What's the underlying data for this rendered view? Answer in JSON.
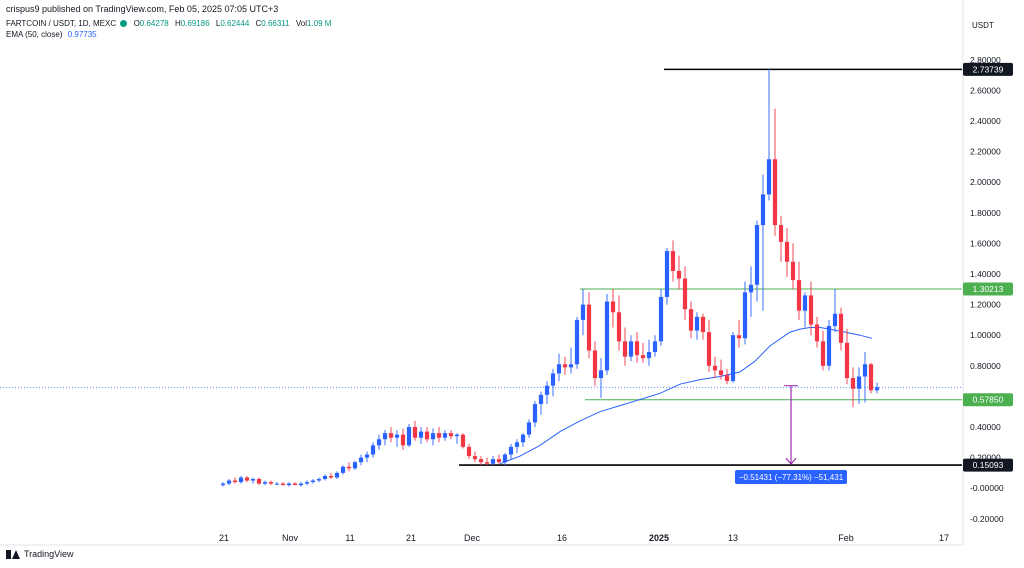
{
  "header": {
    "publisher": "crispus9 published on TradingView.com, Feb 05, 2025 07:05 UTC+3",
    "symbol": "FARTCOIN / USDT, 1D, MEXC",
    "ohlc": {
      "o_label": "O",
      "o": "0.64278",
      "h_label": "H",
      "h": "0.69186",
      "l_label": "L",
      "l": "0.62444",
      "c_label": "C",
      "c": "0.66311",
      "vol_label": "Vol",
      "vol": "1.09 M"
    },
    "ema_label": "EMA (50, close)",
    "ema_value": "0.97735",
    "currency": "USDT"
  },
  "footer": {
    "brand": "TradingView"
  },
  "colors": {
    "up": "#2962ff",
    "down": "#f23645",
    "ema": "#2962ff",
    "support_line": "#4caf50",
    "level_line": "#000000",
    "measure": "#9c27b0",
    "measure_label_bg": "#2962ff",
    "green_label_bg": "#4caf50",
    "black_label_bg": "#131722"
  },
  "chart_data": {
    "type": "candlestick",
    "symbol": "FARTCOIN / USDT",
    "interval": "1D",
    "ylim": [
      -0.25,
      2.85
    ],
    "y_ticks": [
      "2.80000",
      "2.60000",
      "2.40000",
      "2.20000",
      "2.00000",
      "1.80000",
      "1.60000",
      "1.40000",
      "1.20000",
      "1.00000",
      "0.80000",
      "0.60000",
      "0.40000",
      "0.20000",
      "-0.00000",
      "-0.20000"
    ],
    "x_ticks": [
      "21",
      "Nov",
      "11",
      "21",
      "Dec",
      "16",
      "2025",
      "13",
      "Feb",
      "17"
    ],
    "horizontal_levels": [
      {
        "value": 2.73739,
        "label": "2.73739",
        "style": "black"
      },
      {
        "value": 1.30213,
        "label": "1.30213",
        "style": "green"
      },
      {
        "value": 0.5785,
        "label": "0.57850",
        "style": "green"
      },
      {
        "value": 0.15093,
        "label": "0.15093",
        "style": "black"
      }
    ],
    "measure": {
      "from": 0.67,
      "to": 0.15093,
      "label": "−0.51431 (−77.31%) −51,431"
    },
    "candles": [
      {
        "x": 223,
        "o": 0.02,
        "h": 0.04,
        "l": 0.01,
        "c": 0.03
      },
      {
        "x": 229,
        "o": 0.03,
        "h": 0.06,
        "l": 0.02,
        "c": 0.05
      },
      {
        "x": 235,
        "o": 0.05,
        "h": 0.07,
        "l": 0.03,
        "c": 0.04
      },
      {
        "x": 241,
        "o": 0.04,
        "h": 0.08,
        "l": 0.03,
        "c": 0.07
      },
      {
        "x": 247,
        "o": 0.07,
        "h": 0.08,
        "l": 0.04,
        "c": 0.05
      },
      {
        "x": 253,
        "o": 0.05,
        "h": 0.07,
        "l": 0.03,
        "c": 0.06
      },
      {
        "x": 259,
        "o": 0.06,
        "h": 0.07,
        "l": 0.02,
        "c": 0.03
      },
      {
        "x": 265,
        "o": 0.03,
        "h": 0.05,
        "l": 0.02,
        "c": 0.04
      },
      {
        "x": 271,
        "o": 0.04,
        "h": 0.05,
        "l": 0.02,
        "c": 0.03
      },
      {
        "x": 277,
        "o": 0.03,
        "h": 0.04,
        "l": 0.02,
        "c": 0.03
      },
      {
        "x": 283,
        "o": 0.03,
        "h": 0.04,
        "l": 0.02,
        "c": 0.02
      },
      {
        "x": 289,
        "o": 0.02,
        "h": 0.04,
        "l": 0.01,
        "c": 0.03
      },
      {
        "x": 295,
        "o": 0.03,
        "h": 0.04,
        "l": 0.02,
        "c": 0.02
      },
      {
        "x": 301,
        "o": 0.02,
        "h": 0.04,
        "l": 0.01,
        "c": 0.03
      },
      {
        "x": 307,
        "o": 0.03,
        "h": 0.05,
        "l": 0.02,
        "c": 0.04
      },
      {
        "x": 313,
        "o": 0.04,
        "h": 0.06,
        "l": 0.03,
        "c": 0.05
      },
      {
        "x": 319,
        "o": 0.05,
        "h": 0.07,
        "l": 0.04,
        "c": 0.06
      },
      {
        "x": 325,
        "o": 0.06,
        "h": 0.09,
        "l": 0.05,
        "c": 0.08
      },
      {
        "x": 331,
        "o": 0.08,
        "h": 0.1,
        "l": 0.06,
        "c": 0.07
      },
      {
        "x": 337,
        "o": 0.07,
        "h": 0.11,
        "l": 0.06,
        "c": 0.1
      },
      {
        "x": 343,
        "o": 0.1,
        "h": 0.15,
        "l": 0.09,
        "c": 0.14
      },
      {
        "x": 349,
        "o": 0.14,
        "h": 0.17,
        "l": 0.11,
        "c": 0.13
      },
      {
        "x": 355,
        "o": 0.13,
        "h": 0.18,
        "l": 0.12,
        "c": 0.17
      },
      {
        "x": 361,
        "o": 0.17,
        "h": 0.22,
        "l": 0.15,
        "c": 0.2
      },
      {
        "x": 367,
        "o": 0.2,
        "h": 0.24,
        "l": 0.17,
        "c": 0.22
      },
      {
        "x": 373,
        "o": 0.22,
        "h": 0.3,
        "l": 0.2,
        "c": 0.28
      },
      {
        "x": 379,
        "o": 0.28,
        "h": 0.35,
        "l": 0.25,
        "c": 0.32
      },
      {
        "x": 385,
        "o": 0.32,
        "h": 0.38,
        "l": 0.28,
        "c": 0.36
      },
      {
        "x": 391,
        "o": 0.36,
        "h": 0.4,
        "l": 0.3,
        "c": 0.33
      },
      {
        "x": 397,
        "o": 0.33,
        "h": 0.38,
        "l": 0.27,
        "c": 0.35
      },
      {
        "x": 403,
        "o": 0.35,
        "h": 0.39,
        "l": 0.25,
        "c": 0.28
      },
      {
        "x": 409,
        "o": 0.28,
        "h": 0.42,
        "l": 0.27,
        "c": 0.4
      },
      {
        "x": 415,
        "o": 0.4,
        "h": 0.44,
        "l": 0.31,
        "c": 0.33
      },
      {
        "x": 421,
        "o": 0.33,
        "h": 0.4,
        "l": 0.29,
        "c": 0.37
      },
      {
        "x": 427,
        "o": 0.37,
        "h": 0.4,
        "l": 0.3,
        "c": 0.32
      },
      {
        "x": 433,
        "o": 0.32,
        "h": 0.39,
        "l": 0.28,
        "c": 0.36
      },
      {
        "x": 439,
        "o": 0.36,
        "h": 0.4,
        "l": 0.3,
        "c": 0.33
      },
      {
        "x": 445,
        "o": 0.33,
        "h": 0.38,
        "l": 0.31,
        "c": 0.36
      },
      {
        "x": 451,
        "o": 0.36,
        "h": 0.38,
        "l": 0.32,
        "c": 0.34
      },
      {
        "x": 457,
        "o": 0.34,
        "h": 0.36,
        "l": 0.29,
        "c": 0.35
      },
      {
        "x": 463,
        "o": 0.35,
        "h": 0.36,
        "l": 0.26,
        "c": 0.27
      },
      {
        "x": 469,
        "o": 0.27,
        "h": 0.29,
        "l": 0.19,
        "c": 0.21
      },
      {
        "x": 475,
        "o": 0.21,
        "h": 0.24,
        "l": 0.17,
        "c": 0.19
      },
      {
        "x": 481,
        "o": 0.19,
        "h": 0.21,
        "l": 0.15,
        "c": 0.17
      },
      {
        "x": 487,
        "o": 0.17,
        "h": 0.2,
        "l": 0.15,
        "c": 0.16
      },
      {
        "x": 493,
        "o": 0.16,
        "h": 0.21,
        "l": 0.15,
        "c": 0.19
      },
      {
        "x": 499,
        "o": 0.19,
        "h": 0.22,
        "l": 0.16,
        "c": 0.17
      },
      {
        "x": 505,
        "o": 0.17,
        "h": 0.23,
        "l": 0.15,
        "c": 0.22
      },
      {
        "x": 511,
        "o": 0.22,
        "h": 0.29,
        "l": 0.19,
        "c": 0.27
      },
      {
        "x": 517,
        "o": 0.27,
        "h": 0.32,
        "l": 0.23,
        "c": 0.3
      },
      {
        "x": 523,
        "o": 0.3,
        "h": 0.36,
        "l": 0.27,
        "c": 0.35
      },
      {
        "x": 529,
        "o": 0.35,
        "h": 0.45,
        "l": 0.33,
        "c": 0.43
      },
      {
        "x": 535,
        "o": 0.43,
        "h": 0.57,
        "l": 0.4,
        "c": 0.55
      },
      {
        "x": 541,
        "o": 0.55,
        "h": 0.63,
        "l": 0.48,
        "c": 0.61
      },
      {
        "x": 547,
        "o": 0.61,
        "h": 0.7,
        "l": 0.55,
        "c": 0.67
      },
      {
        "x": 553,
        "o": 0.67,
        "h": 0.78,
        "l": 0.6,
        "c": 0.75
      },
      {
        "x": 559,
        "o": 0.75,
        "h": 0.88,
        "l": 0.7,
        "c": 0.81
      },
      {
        "x": 565,
        "o": 0.81,
        "h": 0.86,
        "l": 0.74,
        "c": 0.79
      },
      {
        "x": 571,
        "o": 0.79,
        "h": 0.92,
        "l": 0.75,
        "c": 0.81
      },
      {
        "x": 577,
        "o": 0.81,
        "h": 1.12,
        "l": 0.78,
        "c": 1.1
      },
      {
        "x": 583,
        "o": 1.1,
        "h": 1.3,
        "l": 1.0,
        "c": 1.2
      },
      {
        "x": 589,
        "o": 1.2,
        "h": 1.28,
        "l": 0.85,
        "c": 0.9
      },
      {
        "x": 595,
        "o": 0.9,
        "h": 0.96,
        "l": 0.67,
        "c": 0.72
      },
      {
        "x": 601,
        "o": 0.72,
        "h": 0.85,
        "l": 0.59,
        "c": 0.77
      },
      {
        "x": 607,
        "o": 0.77,
        "h": 1.27,
        "l": 0.74,
        "c": 1.22
      },
      {
        "x": 613,
        "o": 1.22,
        "h": 1.3,
        "l": 1.05,
        "c": 1.15
      },
      {
        "x": 619,
        "o": 1.15,
        "h": 1.26,
        "l": 0.9,
        "c": 0.96
      },
      {
        "x": 625,
        "o": 0.96,
        "h": 1.05,
        "l": 0.8,
        "c": 0.86
      },
      {
        "x": 631,
        "o": 0.86,
        "h": 1.0,
        "l": 0.83,
        "c": 0.96
      },
      {
        "x": 637,
        "o": 0.96,
        "h": 1.02,
        "l": 0.82,
        "c": 0.87
      },
      {
        "x": 643,
        "o": 0.87,
        "h": 0.95,
        "l": 0.82,
        "c": 0.85
      },
      {
        "x": 649,
        "o": 0.85,
        "h": 0.97,
        "l": 0.8,
        "c": 0.89
      },
      {
        "x": 655,
        "o": 0.89,
        "h": 1.0,
        "l": 0.86,
        "c": 0.96
      },
      {
        "x": 661,
        "o": 0.96,
        "h": 1.3,
        "l": 0.93,
        "c": 1.25
      },
      {
        "x": 667,
        "o": 1.25,
        "h": 1.57,
        "l": 1.2,
        "c": 1.55
      },
      {
        "x": 673,
        "o": 1.55,
        "h": 1.62,
        "l": 1.35,
        "c": 1.42
      },
      {
        "x": 679,
        "o": 1.42,
        "h": 1.52,
        "l": 1.3,
        "c": 1.37
      },
      {
        "x": 685,
        "o": 1.37,
        "h": 1.45,
        "l": 1.1,
        "c": 1.17
      },
      {
        "x": 691,
        "o": 1.17,
        "h": 1.22,
        "l": 0.98,
        "c": 1.03
      },
      {
        "x": 697,
        "o": 1.03,
        "h": 1.15,
        "l": 0.97,
        "c": 1.12
      },
      {
        "x": 703,
        "o": 1.12,
        "h": 1.14,
        "l": 0.97,
        "c": 1.02
      },
      {
        "x": 709,
        "o": 1.02,
        "h": 1.1,
        "l": 0.76,
        "c": 0.8
      },
      {
        "x": 715,
        "o": 0.8,
        "h": 0.86,
        "l": 0.72,
        "c": 0.77
      },
      {
        "x": 721,
        "o": 0.77,
        "h": 0.84,
        "l": 0.71,
        "c": 0.74
      },
      {
        "x": 727,
        "o": 0.74,
        "h": 0.78,
        "l": 0.68,
        "c": 0.7
      },
      {
        "x": 733,
        "o": 0.7,
        "h": 1.02,
        "l": 0.69,
        "c": 1.0
      },
      {
        "x": 739,
        "o": 1.0,
        "h": 1.1,
        "l": 0.92,
        "c": 0.98
      },
      {
        "x": 745,
        "o": 0.98,
        "h": 1.35,
        "l": 0.94,
        "c": 1.28
      },
      {
        "x": 751,
        "o": 1.28,
        "h": 1.45,
        "l": 1.12,
        "c": 1.33
      },
      {
        "x": 757,
        "o": 1.33,
        "h": 1.75,
        "l": 1.22,
        "c": 1.72
      },
      {
        "x": 763,
        "o": 1.72,
        "h": 2.05,
        "l": 1.16,
        "c": 1.92
      },
      {
        "x": 769,
        "o": 1.92,
        "h": 2.74,
        "l": 1.88,
        "c": 2.15
      },
      {
        "x": 775,
        "o": 2.15,
        "h": 2.48,
        "l": 1.65,
        "c": 1.72
      },
      {
        "x": 781,
        "o": 1.72,
        "h": 1.78,
        "l": 1.48,
        "c": 1.61
      },
      {
        "x": 787,
        "o": 1.61,
        "h": 1.7,
        "l": 1.38,
        "c": 1.48
      },
      {
        "x": 793,
        "o": 1.48,
        "h": 1.6,
        "l": 1.3,
        "c": 1.36
      },
      {
        "x": 799,
        "o": 1.36,
        "h": 1.48,
        "l": 1.1,
        "c": 1.16
      },
      {
        "x": 805,
        "o": 1.16,
        "h": 1.28,
        "l": 1.05,
        "c": 1.26
      },
      {
        "x": 811,
        "o": 1.26,
        "h": 1.35,
        "l": 1.0,
        "c": 1.07
      },
      {
        "x": 817,
        "o": 1.07,
        "h": 1.12,
        "l": 0.92,
        "c": 0.96
      },
      {
        "x": 823,
        "o": 0.96,
        "h": 1.03,
        "l": 0.77,
        "c": 0.8
      },
      {
        "x": 829,
        "o": 0.8,
        "h": 1.1,
        "l": 0.77,
        "c": 1.06
      },
      {
        "x": 835,
        "o": 1.06,
        "h": 1.3,
        "l": 1.02,
        "c": 1.14
      },
      {
        "x": 841,
        "o": 1.14,
        "h": 1.18,
        "l": 0.9,
        "c": 0.95
      },
      {
        "x": 847,
        "o": 0.95,
        "h": 1.04,
        "l": 0.68,
        "c": 0.72
      },
      {
        "x": 853,
        "o": 0.72,
        "h": 0.79,
        "l": 0.53,
        "c": 0.65
      },
      {
        "x": 859,
        "o": 0.65,
        "h": 0.79,
        "l": 0.55,
        "c": 0.73
      },
      {
        "x": 865,
        "o": 0.73,
        "h": 0.89,
        "l": 0.56,
        "c": 0.81
      },
      {
        "x": 871,
        "o": 0.81,
        "h": 0.82,
        "l": 0.62,
        "c": 0.64
      },
      {
        "x": 877,
        "o": 0.64,
        "h": 0.69,
        "l": 0.62,
        "c": 0.66
      }
    ],
    "ema": [
      [
        500,
        0.16
      ],
      [
        520,
        0.21
      ],
      [
        540,
        0.28
      ],
      [
        560,
        0.37
      ],
      [
        580,
        0.44
      ],
      [
        600,
        0.5
      ],
      [
        620,
        0.54
      ],
      [
        640,
        0.58
      ],
      [
        660,
        0.62
      ],
      [
        680,
        0.68
      ],
      [
        700,
        0.71
      ],
      [
        720,
        0.73
      ],
      [
        740,
        0.76
      ],
      [
        755,
        0.83
      ],
      [
        770,
        0.93
      ],
      [
        790,
        1.02
      ],
      [
        800,
        1.04
      ],
      [
        810,
        1.05
      ],
      [
        820,
        1.05
      ],
      [
        830,
        1.04
      ],
      [
        845,
        1.02
      ],
      [
        860,
        1.0
      ],
      [
        872,
        0.98
      ]
    ]
  }
}
